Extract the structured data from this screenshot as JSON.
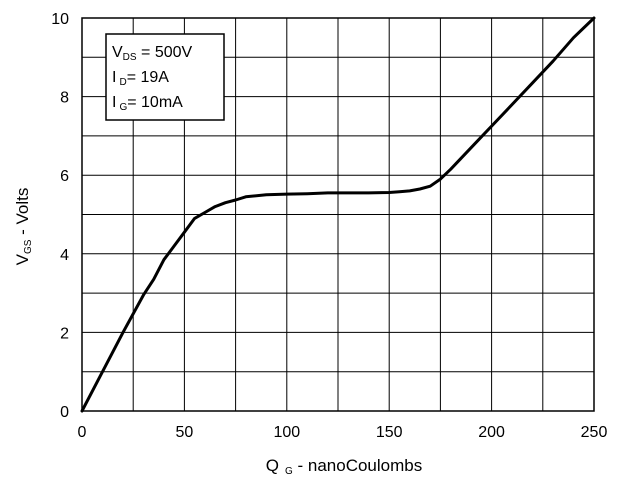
{
  "chart_data": {
    "type": "line",
    "xlabel": {
      "main": "Q",
      "sub": "G",
      "rest": " - nanoCoulombs"
    },
    "ylabel": {
      "main": "V",
      "sub": "GS",
      "rest": " - Volts"
    },
    "xlim": [
      0,
      250
    ],
    "ylim": [
      0,
      10
    ],
    "x_ticks": [
      0,
      50,
      100,
      150,
      200,
      250
    ],
    "y_ticks": [
      0,
      2,
      4,
      6,
      8,
      10
    ],
    "x_minor_step": 25,
    "y_minor_step": 1,
    "grid": true,
    "legend_placement": "top-left",
    "annotations": [
      {
        "main": "V",
        "sub": "DS",
        "rest": " = 500V"
      },
      {
        "main": "I",
        "sub": "D",
        "rest": "= 19A"
      },
      {
        "main": "I",
        "sub": "G",
        "rest": "= 10mA"
      }
    ],
    "series": [
      {
        "color": "#000000",
        "x": [
          0,
          10,
          20,
          30,
          35,
          40,
          45,
          50,
          55,
          60,
          65,
          70,
          75,
          80,
          90,
          100,
          110,
          120,
          130,
          140,
          150,
          155,
          160,
          165,
          170,
          175,
          180,
          190,
          200,
          210,
          220,
          230,
          240,
          250
        ],
        "y": [
          0,
          1.0,
          2.0,
          2.95,
          3.35,
          3.85,
          4.2,
          4.55,
          4.9,
          5.05,
          5.2,
          5.3,
          5.37,
          5.45,
          5.5,
          5.52,
          5.53,
          5.55,
          5.55,
          5.55,
          5.56,
          5.58,
          5.6,
          5.65,
          5.72,
          5.9,
          6.15,
          6.7,
          7.25,
          7.8,
          8.35,
          8.9,
          9.5,
          10.0
        ]
      }
    ]
  }
}
